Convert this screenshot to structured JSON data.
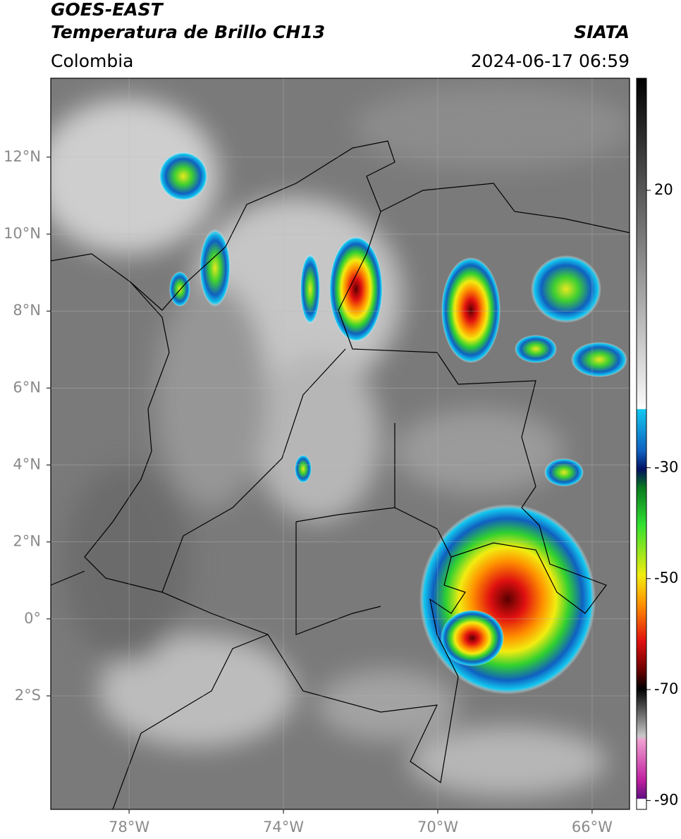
{
  "header": {
    "line1": "GOES-EAST",
    "line2": "Temperatura de Brillo CH13",
    "source": "SIATA",
    "region": "Colombia",
    "timestamp": "2024-06-17 06:59"
  },
  "map": {
    "xlim": [
      -80.03,
      -65.03
    ],
    "ylim": [
      -4.95,
      14.05
    ],
    "xticks": [
      {
        "value": -78,
        "label": "78°W"
      },
      {
        "value": -74,
        "label": "74°W"
      },
      {
        "value": -70,
        "label": "70°W"
      },
      {
        "value": -66,
        "label": "66°W"
      }
    ],
    "yticks": [
      {
        "value": 12,
        "label": "12°N"
      },
      {
        "value": 10,
        "label": "10°N"
      },
      {
        "value": 8,
        "label": "8°N"
      },
      {
        "value": 6,
        "label": "6°N"
      },
      {
        "value": 4,
        "label": "4°N"
      },
      {
        "value": 2,
        "label": "2°N"
      },
      {
        "value": 0,
        "label": "0°"
      },
      {
        "value": -2,
        "label": "2°S"
      }
    ],
    "grid": true
  },
  "colorbar": {
    "lim": [
      -91.6,
      40.2
    ],
    "ticks": [
      20,
      -30,
      -50,
      -70,
      -90
    ]
  }
}
